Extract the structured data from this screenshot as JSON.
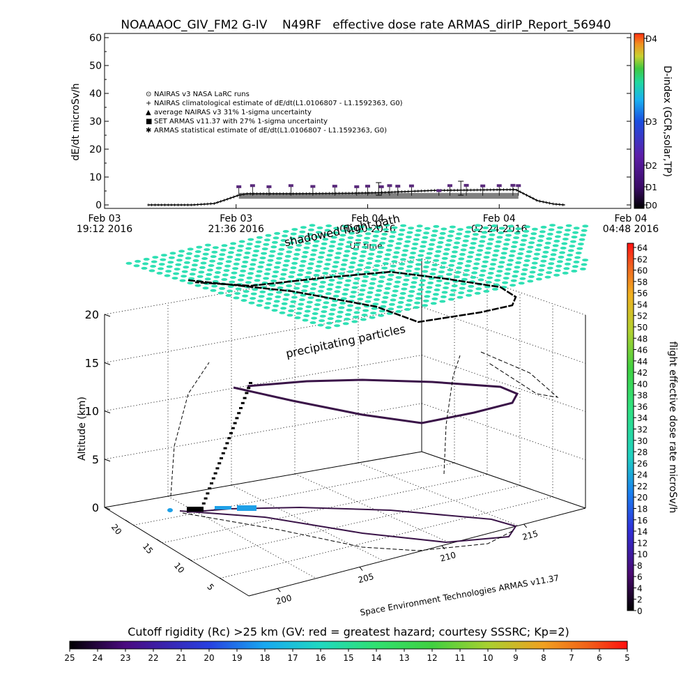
{
  "chart_data": [
    {
      "type": "scatter",
      "title": "NOAAAOC_GIV_FM2 G-IV    N49RF   effective dose rate ARMAS_dirIP_Report_56940",
      "ylabel": "dE/dt microSv/h",
      "xlabel": "UT time",
      "ylim": [
        0,
        60
      ],
      "yticks": [
        "0",
        "10",
        "20",
        "30",
        "40",
        "50",
        "60"
      ],
      "xticks": [
        {
          "date": "Feb 03",
          "time": "19:12 2016"
        },
        {
          "date": "Feb 03",
          "time": "21:36 2016"
        },
        {
          "date": "Feb 04",
          "time": "00:00 2016"
        },
        {
          "date": "Feb 04",
          "time": "02:24 2016"
        },
        {
          "date": "Feb 04",
          "time": "04:48 2016"
        }
      ],
      "x_range_hours": [
        0,
        9.6
      ],
      "legend_position": "upper-left",
      "legend": [
        {
          "symbol": "⊙",
          "text": "NAIRAS v3 NASA LaRC runs"
        },
        {
          "symbol": "+",
          "text": "NAIRAS climatological estimate of dE/dt(L1.0106807 - L1.1592363, G0)"
        },
        {
          "symbol": "▲",
          "text": "average NAIRAS v3 31% 1-sigma uncertainty"
        },
        {
          "symbol": "■",
          "text": "SET ARMAS v11.37 with 27% 1-sigma uncertainty"
        },
        {
          "symbol": "✱",
          "text": "ARMAS statistical estimate of dE/dt(L1.0106807 - L1.1592363, G0)"
        }
      ],
      "series": [
        {
          "name": "NAIRAS climatological estimate of dE/dt(L1.0106807 - L1.1592363, G0)",
          "x": [
            0.8,
            1.6,
            2.0,
            2.2,
            2.45,
            2.6,
            3.5,
            4.5,
            5.0,
            6.0,
            7.0,
            7.5,
            7.7,
            7.9,
            8.2,
            8.4
          ],
          "y": [
            0,
            0,
            0.5,
            1.8,
            3.5,
            4.0,
            4.0,
            4.2,
            4.4,
            5.2,
            5.4,
            5.5,
            3.5,
            1.5,
            0.3,
            0
          ]
        },
        {
          "name": "SET ARMAS v11.37 with 27% 1-sigma uncertainty",
          "x": [
            2.45,
            2.7,
            3.0,
            3.4,
            3.8,
            4.2,
            4.6,
            4.8,
            5.05,
            5.2,
            5.35,
            5.6,
            6.1,
            6.3,
            6.6,
            6.9,
            7.2,
            7.45,
            7.55
          ],
          "y": [
            6.4,
            6.8,
            6.4,
            6.8,
            6.5,
            6.6,
            6.4,
            6.6,
            6.4,
            6.8,
            6.6,
            6.7,
            5.0,
            6.8,
            6.9,
            6.7,
            6.8,
            6.9,
            6.8
          ]
        },
        {
          "name": "NAIRAS v3 NASA LaRC runs",
          "x": [
            5.0,
            6.5
          ],
          "y": [
            7.5,
            8.0
          ]
        }
      ],
      "d_index_scale": {
        "label": "D-index (GCR,solar,TP)",
        "ticks": [
          "D0",
          "D1",
          "D2",
          "D3",
          "D4"
        ]
      }
    },
    {
      "type": "scatter",
      "xlabel": "Space Environment Technologies ARMAS v11.37",
      "ylabel": "Altitude (km)",
      "zticks": [
        "0",
        "5",
        "10",
        "15",
        "20"
      ],
      "lon_ticks": [
        "200",
        "205",
        "210",
        "215"
      ],
      "lat_ticks": [
        "5",
        "10",
        "15",
        "20"
      ],
      "annotations": [
        "shadowed flight path",
        "precipitating particles"
      ],
      "colorbar_right": {
        "label": "flight effective dose rate microSv/h",
        "ticks": [
          "0",
          "2",
          "4",
          "6",
          "8",
          "10",
          "12",
          "14",
          "16",
          "18",
          "20",
          "22",
          "24",
          "26",
          "28",
          "30",
          "32",
          "34",
          "36",
          "38",
          "40",
          "42",
          "44",
          "46",
          "48",
          "50",
          "52",
          "54",
          "56",
          "58",
          "60",
          "62",
          "64"
        ]
      },
      "colorbar_bottom": {
        "label": "Cutoff rigidity (Rc) >25 km (GV: red = greatest hazard; courtesy SSSRC; Kp=2)",
        "ticks": [
          "25",
          "24",
          "23",
          "22",
          "21",
          "20",
          "19",
          "18",
          "17",
          "16",
          "15",
          "14",
          "13",
          "12",
          "11",
          "10",
          "9",
          "8",
          "7",
          "6",
          "5"
        ]
      },
      "colors": {
        "grid_points": "#30e0b4",
        "track_cruise": "#3a1448",
        "track_low": "#1ea0e8"
      }
    }
  ]
}
